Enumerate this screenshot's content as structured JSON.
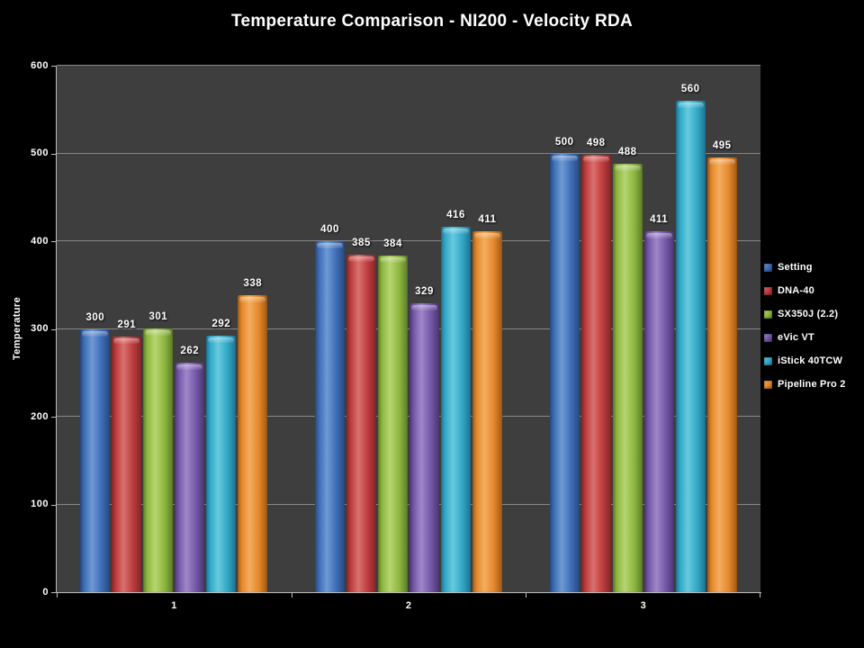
{
  "chart_data": {
    "type": "bar",
    "title": "Temperature Comparison - NI200 - Velocity RDA",
    "xlabel": "",
    "ylabel": "Temperature",
    "categories": [
      "1",
      "2",
      "3"
    ],
    "series": [
      {
        "name": "Setting",
        "color": "#3E6DB5",
        "shade_light": "#6E9AD4",
        "shade_dark": "#27497E",
        "values": [
          300,
          400,
          500
        ]
      },
      {
        "name": "DNA-40",
        "color": "#BE3B3D",
        "shade_light": "#D9716E",
        "shade_dark": "#822628",
        "values": [
          291,
          385,
          498
        ]
      },
      {
        "name": "SX350J (2.2)",
        "color": "#8DB73F",
        "shade_light": "#B6D470",
        "shade_dark": "#5D7B27",
        "values": [
          301,
          384,
          488
        ]
      },
      {
        "name": "eVic VT",
        "color": "#7457A8",
        "shade_light": "#9F87C9",
        "shade_dark": "#4B366F",
        "values": [
          262,
          329,
          411
        ]
      },
      {
        "name": "iStick 40TCW",
        "color": "#31A8C6",
        "shade_light": "#67CADF",
        "shade_dark": "#1E7190",
        "values": [
          292,
          416,
          560
        ]
      },
      {
        "name": "Pipeline Pro 2",
        "color": "#E5872B",
        "shade_light": "#F3AE5F",
        "shade_dark": "#9C5A17",
        "values": [
          338,
          411,
          495
        ]
      }
    ],
    "ylim": [
      0,
      600
    ],
    "ytick_interval": 100,
    "yticks": [
      0,
      100,
      200,
      300,
      400,
      500,
      600
    ],
    "grid": true,
    "bar_value_labels": true,
    "legend_position": "right"
  },
  "colors": {
    "background": "#000000",
    "plot_background": "#3E3E3E",
    "gridline": "#878787",
    "axis": "#BEBEBE",
    "text": "#FFFFFF"
  }
}
